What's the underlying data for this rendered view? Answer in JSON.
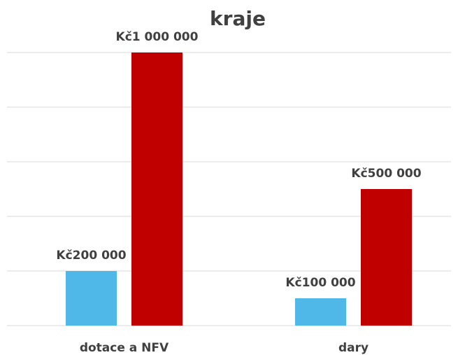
{
  "chart_data": {
    "type": "bar",
    "title": "kraje",
    "categories": [
      "dotace a NFV",
      "dary"
    ],
    "series": [
      {
        "color": "#4fb8e8",
        "values": [
          200000,
          100000
        ],
        "value_labels": [
          "Kč200 000",
          "Kč100 000"
        ]
      },
      {
        "color": "#c00000",
        "values": [
          1000000,
          500000
        ],
        "value_labels": [
          "Kč1 000 000",
          "Kč500 000"
        ]
      }
    ],
    "ylim": [
      0,
      1000000
    ],
    "yticks": [
      0,
      200000,
      400000,
      600000,
      800000,
      1000000
    ],
    "grid": true
  }
}
